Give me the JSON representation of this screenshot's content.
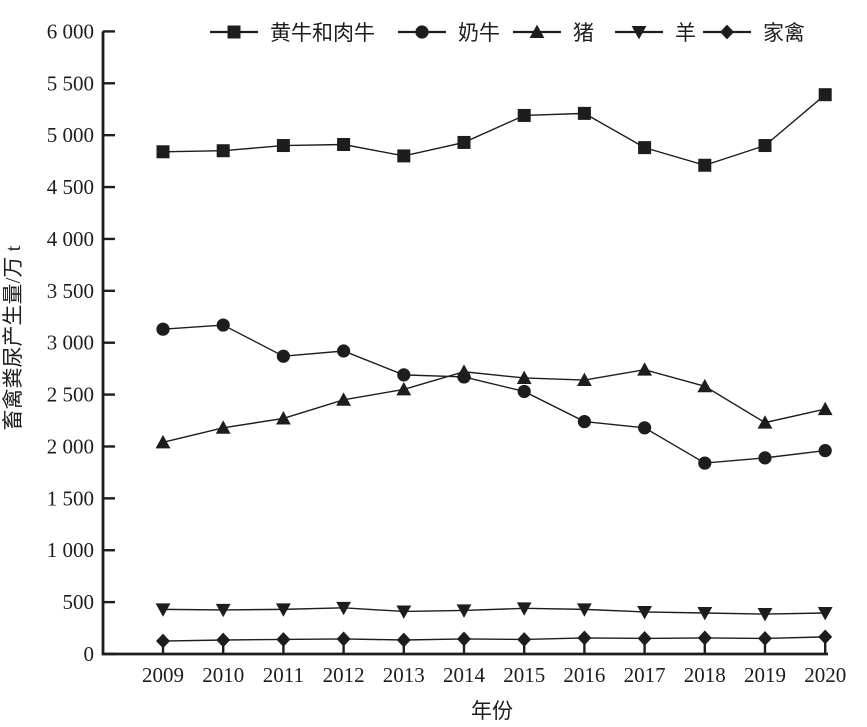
{
  "chart_data": {
    "type": "line",
    "title": "",
    "xlabel": "年份",
    "ylabel": "畜禽粪尿产生量/万 t",
    "x": [
      2009,
      2010,
      2011,
      2012,
      2013,
      2014,
      2015,
      2016,
      2017,
      2018,
      2019,
      2020
    ],
    "ylim": [
      0,
      6000
    ],
    "ytick_interval": 500,
    "ytick_labels": [
      "0",
      "500",
      "1 000",
      "1 500",
      "2 000",
      "2 500",
      "3 000",
      "3 500",
      "4 000",
      "4 500",
      "5 000",
      "5 500",
      "6 000"
    ],
    "grid": false,
    "legend_position": "top",
    "line_color": "#1d1d1b",
    "series": [
      {
        "name": "黄牛和肉牛",
        "marker": "square",
        "values": [
          4840,
          4850,
          4900,
          4910,
          4800,
          4930,
          5190,
          5210,
          4880,
          4710,
          4900,
          5390
        ]
      },
      {
        "name": "奶牛",
        "marker": "circle",
        "values": [
          3130,
          3170,
          2870,
          2920,
          2690,
          2670,
          2530,
          2240,
          2180,
          1840,
          1890,
          1960
        ]
      },
      {
        "name": "猪",
        "marker": "triangle-up",
        "values": [
          2040,
          2180,
          2270,
          2450,
          2550,
          2720,
          2660,
          2640,
          2740,
          2580,
          2230,
          2360
        ]
      },
      {
        "name": "羊",
        "marker": "triangle-down",
        "values": [
          430,
          425,
          430,
          445,
          410,
          420,
          440,
          430,
          405,
          395,
          385,
          395
        ]
      },
      {
        "name": "家禽",
        "marker": "diamond",
        "values": [
          125,
          135,
          140,
          145,
          135,
          145,
          140,
          155,
          150,
          155,
          150,
          165
        ]
      }
    ]
  }
}
